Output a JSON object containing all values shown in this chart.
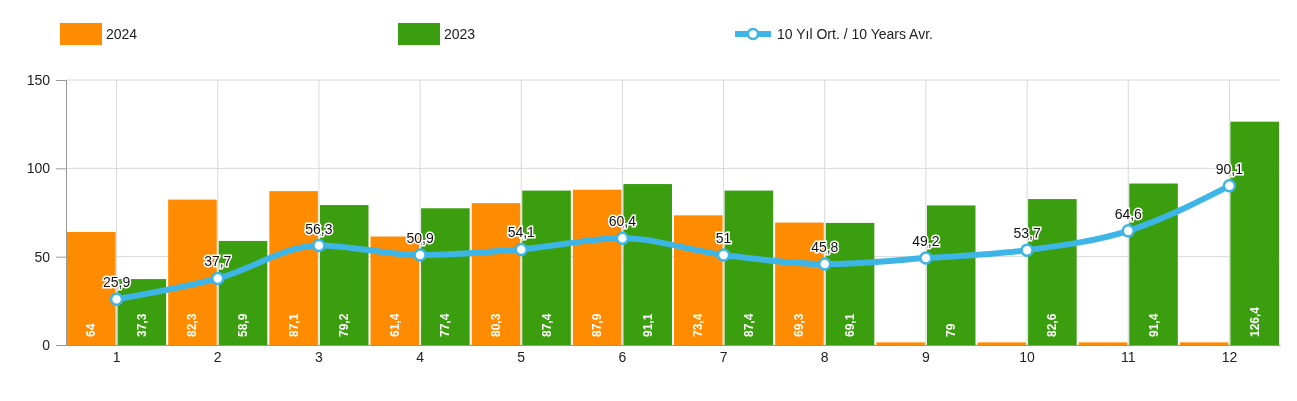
{
  "chart_data": {
    "type": "bar",
    "categories": [
      "1",
      "2",
      "3",
      "4",
      "5",
      "6",
      "7",
      "8",
      "9",
      "10",
      "11",
      "12"
    ],
    "series": [
      {
        "name": "2024",
        "color": "#ff8c00",
        "values": [
          64,
          82.3,
          87.1,
          61.4,
          80.3,
          87.9,
          73.4,
          69.3,
          1.5,
          1.5,
          1.5,
          1.5
        ],
        "value_labels": [
          "64",
          "82,3",
          "87,1",
          "61,4",
          "80,3",
          "87,9",
          "73,4",
          "69,3",
          null,
          null,
          null,
          null
        ]
      },
      {
        "name": "2023",
        "color": "#3a9e0f",
        "values": [
          37.3,
          58.9,
          79.2,
          77.4,
          87.4,
          91.1,
          87.4,
          69.1,
          79,
          82.6,
          91.4,
          126.4
        ],
        "value_labels": [
          "37,3",
          "58,9",
          "79,2",
          "77,4",
          "87,4",
          "91,1",
          "87,4",
          "69,1",
          "79",
          "82,6",
          "91,4",
          "126,4"
        ]
      },
      {
        "name": "10 Yıl Ort. / 10 Years Avr.",
        "type": "line",
        "color": "#3db5e6",
        "values": [
          25.9,
          37.7,
          56.3,
          50.9,
          54.1,
          60.4,
          51,
          45.8,
          49.2,
          53.7,
          64.6,
          90.1
        ],
        "value_labels": [
          "25,9",
          "37,7",
          "56,3",
          "50,9",
          "54,1",
          "60,4",
          "51",
          "45,8",
          "49,2",
          "53,7",
          "64,6",
          "90,1"
        ]
      }
    ],
    "ylim": [
      0,
      150
    ],
    "yticks": [
      0,
      50,
      100,
      150
    ],
    "grid": true,
    "legend": "top",
    "marker": "circle"
  }
}
